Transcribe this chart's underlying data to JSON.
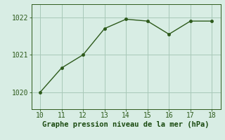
{
  "x": [
    10,
    11,
    12,
    13,
    14,
    15,
    16,
    17,
    18
  ],
  "y": [
    1020.0,
    1020.65,
    1021.0,
    1021.7,
    1021.95,
    1021.9,
    1021.55,
    1021.9,
    1021.9
  ],
  "line_color": "#2d5a1b",
  "bg_color": "#d8ede4",
  "grid_color": "#a8c8b8",
  "xlabel": "Graphe pression niveau de la mer (hPa)",
  "xlabel_color": "#1a4a10",
  "tick_color": "#2d5a1b",
  "xlim": [
    9.6,
    18.4
  ],
  "ylim": [
    1019.55,
    1022.35
  ],
  "xticks": [
    10,
    11,
    12,
    13,
    14,
    15,
    16,
    17,
    18
  ],
  "yticks": [
    1020,
    1021,
    1022
  ],
  "marker_size": 2.5,
  "line_width": 1.0,
  "xlabel_fontsize": 7.5,
  "tick_fontsize": 7.0
}
